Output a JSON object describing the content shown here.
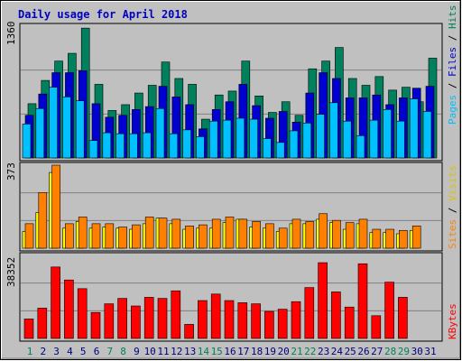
{
  "chart_data": [
    {
      "type": "bar",
      "panel": "hits-files-pages",
      "title": "Daily usage for April 2018",
      "ylabel_max": "1360",
      "ylim": [
        0,
        1360
      ],
      "categories": [
        "1",
        "2",
        "3",
        "4",
        "5",
        "6",
        "7",
        "8",
        "9",
        "10",
        "11",
        "12",
        "13",
        "14",
        "15",
        "16",
        "17",
        "18",
        "19",
        "20",
        "21",
        "22",
        "23",
        "24",
        "25",
        "26",
        "27",
        "28",
        "29",
        "30",
        "31"
      ],
      "series": [
        {
          "name": "Hits",
          "color": "#00805c",
          "values": [
            560,
            800,
            1000,
            1080,
            1340,
            760,
            490,
            550,
            670,
            750,
            990,
            820,
            760,
            400,
            650,
            690,
            1000,
            640,
            470,
            580,
            440,
            920,
            1000,
            1140,
            820,
            750,
            840,
            700,
            730,
            580,
            1030
          ]
        },
        {
          "name": "Files",
          "color": "#0000d0",
          "values": [
            440,
            660,
            880,
            880,
            900,
            560,
            420,
            440,
            500,
            530,
            740,
            630,
            550,
            300,
            500,
            580,
            760,
            540,
            410,
            480,
            370,
            670,
            880,
            820,
            620,
            620,
            650,
            550,
            620,
            720,
            740
          ]
        },
        {
          "name": "Pages",
          "color": "#00c0ff",
          "values": [
            350,
            510,
            730,
            630,
            590,
            180,
            260,
            250,
            250,
            260,
            510,
            250,
            290,
            220,
            380,
            390,
            410,
            400,
            200,
            160,
            280,
            360,
            450,
            570,
            380,
            230,
            390,
            500,
            380,
            610,
            480
          ]
        }
      ],
      "axis_label": [
        "Pages",
        "Files",
        "Hits"
      ],
      "xlabel_colors": {
        "weekday": "#000080",
        "weekend": "#00805c",
        "weekend_days": [
          "1",
          "7",
          "8",
          "14",
          "15",
          "21",
          "22",
          "28",
          "29"
        ]
      }
    },
    {
      "type": "bar",
      "panel": "visits-sites",
      "ylabel_max": "373",
      "ylim": [
        0,
        373
      ],
      "categories": [
        "1",
        "2",
        "3",
        "4",
        "5",
        "6",
        "7",
        "8",
        "9",
        "10",
        "11",
        "12",
        "13",
        "14",
        "15",
        "16",
        "17",
        "18",
        "19",
        "20",
        "21",
        "22",
        "23",
        "24",
        "25",
        "26",
        "27",
        "28",
        "29",
        "30",
        "31"
      ],
      "series": [
        {
          "name": "Visits",
          "color": "#ffff00",
          "values": [
            75,
            160,
            340,
            90,
            120,
            90,
            95,
            90,
            85,
            110,
            135,
            110,
            85,
            90,
            90,
            115,
            130,
            95,
            90,
            75,
            110,
            110,
            130,
            115,
            85,
            110,
            70,
            70,
            65,
            80,
            0
          ]
        },
        {
          "name": "Sites",
          "color": "#ff8000",
          "values": [
            110,
            250,
            373,
            110,
            140,
            110,
            110,
            95,
            105,
            140,
            135,
            130,
            100,
            105,
            130,
            140,
            130,
            120,
            110,
            90,
            130,
            120,
            155,
            125,
            115,
            130,
            85,
            85,
            80,
            100,
            0
          ]
        }
      ],
      "axis_label": [
        "Sites",
        "Visits"
      ]
    },
    {
      "type": "bar",
      "panel": "kbytes",
      "ylabel_max": "38352",
      "ylim": [
        0,
        38352
      ],
      "categories": [
        "1",
        "2",
        "3",
        "4",
        "5",
        "6",
        "7",
        "8",
        "9",
        "10",
        "11",
        "12",
        "13",
        "14",
        "15",
        "16",
        "17",
        "18",
        "19",
        "20",
        "21",
        "22",
        "23",
        "24",
        "25",
        "26",
        "27",
        "28",
        "29",
        "30",
        "31"
      ],
      "series": [
        {
          "name": "KBytes",
          "color": "#ff0000",
          "values": [
            9000,
            14000,
            33000,
            27000,
            23000,
            12000,
            16000,
            18500,
            15000,
            19000,
            18500,
            22000,
            6500,
            17500,
            20500,
            17500,
            16500,
            16000,
            12500,
            13500,
            17000,
            23500,
            35000,
            21500,
            14500,
            34500,
            10500,
            26000,
            19000,
            0,
            0
          ]
        }
      ],
      "axis_label": [
        "KBytes"
      ]
    }
  ]
}
